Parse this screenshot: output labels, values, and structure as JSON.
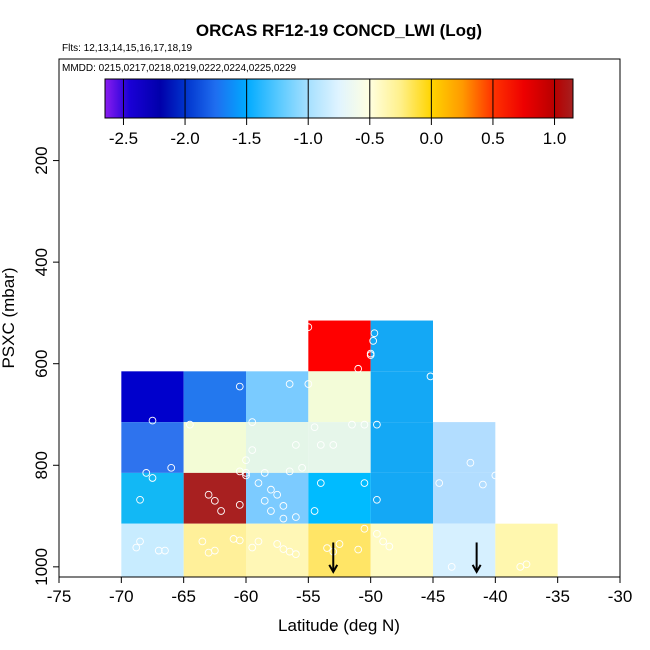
{
  "chart_data": {
    "type": "heatmap",
    "title": "ORCAS RF12-19 CONCD_LWI (Log)",
    "flights_label": "Flts: 12,13,14,15,16,17,18,19",
    "mmdd_label": "MMDD: 0215,0217,0218,0219,0222,0224,0225,0229",
    "xlabel": "Latitude (deg N)",
    "ylabel": "PSXC (mbar)",
    "xlim": [
      -75,
      -30
    ],
    "ylim": [
      1020,
      0
    ],
    "x_ticks": [
      -75,
      -70,
      -65,
      -60,
      -55,
      -50,
      -45,
      -40,
      -35,
      -30
    ],
    "y_ticks": [
      200,
      400,
      600,
      800,
      1000
    ],
    "colorbar": {
      "range": [
        -2.65,
        1.15
      ],
      "ticks": [
        -2.5,
        -2.0,
        -1.5,
        -1.0,
        -0.5,
        0.0,
        0.5,
        1.0
      ],
      "tick_labels": [
        "-2.5",
        "-2.0",
        "-1.5",
        "-1.0",
        "-0.5",
        "0.0",
        "0.5",
        "1.0"
      ],
      "gradient_stops": [
        {
          "value": -2.65,
          "color": "#8a1cf0"
        },
        {
          "value": -2.45,
          "color": "#1a00d6"
        },
        {
          "value": -2.2,
          "color": "#0000aa"
        },
        {
          "value": -2.0,
          "color": "#0033cc"
        },
        {
          "value": -1.75,
          "color": "#1f6ef0"
        },
        {
          "value": -1.5,
          "color": "#00aaff"
        },
        {
          "value": -1.25,
          "color": "#55c8ff"
        },
        {
          "value": -1.0,
          "color": "#a6e0ff"
        },
        {
          "value": -0.75,
          "color": "#e0f4ff"
        },
        {
          "value": -0.5,
          "color": "#ffffe0"
        },
        {
          "value": -0.25,
          "color": "#fff08a"
        },
        {
          "value": 0.0,
          "color": "#ffd400"
        },
        {
          "value": 0.25,
          "color": "#ff9a00"
        },
        {
          "value": 0.5,
          "color": "#ff3300"
        },
        {
          "value": 0.75,
          "color": "#ee0000"
        },
        {
          "value": 1.0,
          "color": "#b80000"
        },
        {
          "value": 1.15,
          "color": "#a62020"
        }
      ]
    },
    "cells": [
      {
        "x0": -70,
        "x1": -65,
        "p0": 615,
        "p1": 715,
        "color": "#0000cc"
      },
      {
        "x0": -70,
        "x1": -65,
        "p0": 715,
        "p1": 815,
        "color": "#2e73ee"
      },
      {
        "x0": -70,
        "x1": -65,
        "p0": 815,
        "p1": 915,
        "color": "#12b8f5"
      },
      {
        "x0": -70,
        "x1": -65,
        "p0": 915,
        "p1": 1020,
        "color": "#c8ecff"
      },
      {
        "x0": -65,
        "x1": -60,
        "p0": 615,
        "p1": 715,
        "color": "#2378ee"
      },
      {
        "x0": -65,
        "x1": -60,
        "p0": 715,
        "p1": 815,
        "color": "#f3fcd6"
      },
      {
        "x0": -65,
        "x1": -60,
        "p0": 815,
        "p1": 915,
        "color": "#a82020"
      },
      {
        "x0": -65,
        "x1": -60,
        "p0": 915,
        "p1": 1020,
        "color": "#fff09a"
      },
      {
        "x0": -60,
        "x1": -55,
        "p0": 615,
        "p1": 715,
        "color": "#7acbff"
      },
      {
        "x0": -60,
        "x1": -55,
        "p0": 715,
        "p1": 815,
        "color": "#e4f6e8"
      },
      {
        "x0": -60,
        "x1": -55,
        "p0": 815,
        "p1": 915,
        "color": "#7ccbff"
      },
      {
        "x0": -60,
        "x1": -55,
        "p0": 915,
        "p1": 1020,
        "color": "#fff7b6"
      },
      {
        "x0": -55,
        "x1": -50,
        "p0": 515,
        "p1": 615,
        "color": "#ff0000"
      },
      {
        "x0": -55,
        "x1": -50,
        "p0": 615,
        "p1": 715,
        "color": "#f3fcd8"
      },
      {
        "x0": -55,
        "x1": -50,
        "p0": 715,
        "p1": 815,
        "color": "#e6f6ea"
      },
      {
        "x0": -55,
        "x1": -50,
        "p0": 815,
        "p1": 915,
        "color": "#00bbff"
      },
      {
        "x0": -55,
        "x1": -50,
        "p0": 915,
        "p1": 1020,
        "color": "#ffe566"
      },
      {
        "x0": -50,
        "x1": -45,
        "p0": 515,
        "p1": 615,
        "color": "#14a8f5"
      },
      {
        "x0": -50,
        "x1": -45,
        "p0": 615,
        "p1": 715,
        "color": "#14a8f5"
      },
      {
        "x0": -50,
        "x1": -45,
        "p0": 715,
        "p1": 815,
        "color": "#14a8f5"
      },
      {
        "x0": -50,
        "x1": -45,
        "p0": 815,
        "p1": 915,
        "color": "#14a8f5"
      },
      {
        "x0": -50,
        "x1": -45,
        "p0": 915,
        "p1": 1020,
        "color": "#fffbc4"
      },
      {
        "x0": -45,
        "x1": -40,
        "p0": 715,
        "p1": 815,
        "color": "#b2ddff"
      },
      {
        "x0": -45,
        "x1": -40,
        "p0": 815,
        "p1": 915,
        "color": "#b2ddff"
      },
      {
        "x0": -45,
        "x1": -40,
        "p0": 915,
        "p1": 1020,
        "color": "#d6f0ff"
      },
      {
        "x0": -40,
        "x1": -35,
        "p0": 915,
        "p1": 1020,
        "color": "#fff7ae"
      }
    ],
    "arrows": [
      {
        "lat": -53,
        "p_top": 952,
        "p_bottom": 1010
      },
      {
        "lat": -41.5,
        "p_top": 952,
        "p_bottom": 1010
      }
    ],
    "points": [
      [
        -67.5,
        712
      ],
      [
        -68,
        815
      ],
      [
        -67.5,
        825
      ],
      [
        -66,
        805
      ],
      [
        -68.5,
        868
      ],
      [
        -68.5,
        950
      ],
      [
        -68.8,
        962
      ],
      [
        -67,
        968
      ],
      [
        -66.5,
        968
      ],
      [
        -64.5,
        720
      ],
      [
        -63,
        858
      ],
      [
        -62.5,
        870
      ],
      [
        -62,
        890
      ],
      [
        -60.5,
        878
      ],
      [
        -63.5,
        950
      ],
      [
        -62.5,
        968
      ],
      [
        -63,
        972
      ],
      [
        -61,
        945
      ],
      [
        -60.5,
        948
      ],
      [
        -59.5,
        962
      ],
      [
        -59,
        950
      ],
      [
        -60.5,
        645
      ],
      [
        -59.5,
        715
      ],
      [
        -59.5,
        770
      ],
      [
        -60,
        790
      ],
      [
        -60.5,
        812
      ],
      [
        -60,
        820
      ],
      [
        -60,
        815
      ],
      [
        -59,
        835
      ],
      [
        -58.5,
        815
      ],
      [
        -58,
        848
      ],
      [
        -57.5,
        858
      ],
      [
        -58.5,
        870
      ],
      [
        -57,
        880
      ],
      [
        -58,
        890
      ],
      [
        -57,
        905
      ],
      [
        -56,
        902
      ],
      [
        -57.5,
        955
      ],
      [
        -57,
        965
      ],
      [
        -56.5,
        970
      ],
      [
        -56,
        975
      ],
      [
        -56.5,
        640
      ],
      [
        -56,
        760
      ],
      [
        -56.5,
        812
      ],
      [
        -55.5,
        805
      ],
      [
        -55,
        640
      ],
      [
        -54,
        760
      ],
      [
        -53,
        760
      ],
      [
        -54.5,
        725
      ],
      [
        -54,
        835
      ],
      [
        -54.5,
        890
      ],
      [
        -53.5,
        963
      ],
      [
        -53,
        970
      ],
      [
        -52.5,
        955
      ],
      [
        -51,
        966
      ],
      [
        -51.5,
        720
      ],
      [
        -50.5,
        835
      ],
      [
        -51,
        610
      ],
      [
        -50.5,
        720
      ],
      [
        -49.5,
        720
      ],
      [
        -49.7,
        540
      ],
      [
        -49.8,
        555
      ],
      [
        -50,
        580
      ],
      [
        -50,
        583
      ],
      [
        -49.5,
        868
      ],
      [
        -50.5,
        925
      ],
      [
        -49.5,
        935
      ],
      [
        -49,
        950
      ],
      [
        -48.5,
        960
      ],
      [
        -55,
        528
      ],
      [
        -45.2,
        625
      ],
      [
        -44.5,
        835
      ],
      [
        -43.5,
        1000
      ],
      [
        -42,
        795
      ],
      [
        -41,
        838
      ],
      [
        -40,
        820
      ],
      [
        -38,
        1000
      ],
      [
        -37.5,
        995
      ]
    ]
  }
}
